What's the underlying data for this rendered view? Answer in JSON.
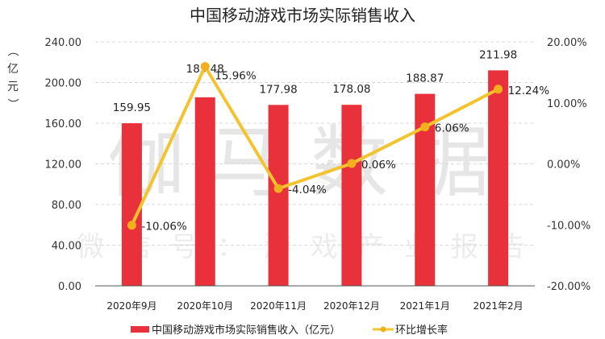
{
  "chart_data": {
    "type": "bar+line",
    "title": "中国移动游戏市场实际销售收入",
    "xlabel": "",
    "ylabel": "（亿元）",
    "y2label": "",
    "categories": [
      "2020年9月",
      "2020年10月",
      "2020年11月",
      "2020年12月",
      "2021年1月",
      "2021年2月"
    ],
    "series": [
      {
        "name": "中国移动游戏市场实际销售收入（亿元）",
        "type": "bar",
        "axis": "left",
        "color": "#e8313a",
        "values": [
          159.95,
          185.48,
          177.98,
          178.08,
          188.87,
          211.98
        ],
        "labels": [
          "159.95",
          "185.48",
          "177.98",
          "178.08",
          "188.87",
          "211.98"
        ]
      },
      {
        "name": "环比增长率",
        "type": "line",
        "axis": "right",
        "color": "#f4c430",
        "values": [
          -10.06,
          15.96,
          -4.04,
          0.06,
          6.06,
          12.24
        ],
        "labels": [
          "-10.06%",
          "15.96%",
          "-4.04%",
          "0.06%",
          "6.06%",
          "12.24%"
        ]
      }
    ],
    "ylim": [
      0,
      240
    ],
    "y2lim": [
      -20,
      20
    ],
    "yticks": [
      "0.00",
      "40.00",
      "80.00",
      "120.00",
      "160.00",
      "200.00",
      "240.00"
    ],
    "y2ticks": [
      "-20.00%",
      "-10.00%",
      "0.00%",
      "10.00%",
      "20.00%"
    ],
    "grid": true,
    "legend_position": "bottom"
  },
  "watermark": {
    "main": "伽马数据",
    "sub": "微信号：游戏产业报告"
  }
}
